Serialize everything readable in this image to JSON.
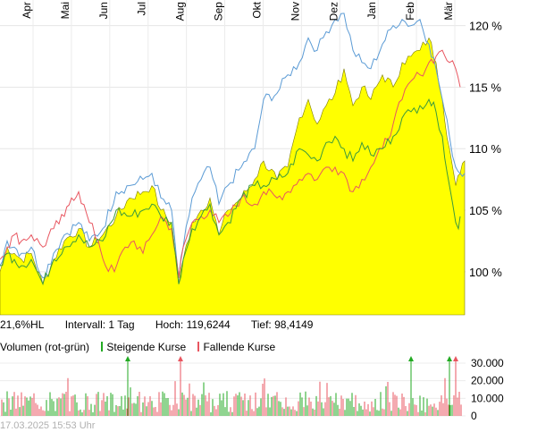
{
  "chart_data": {
    "type": "area",
    "x_ticks": [
      "Apr",
      "Mai",
      "Jun",
      "Jul",
      "Aug",
      "Sep",
      "Okt",
      "Nov",
      "Dez",
      "Jan",
      "Feb",
      "Mär"
    ],
    "y_ticks": [
      "100 %",
      "105 %",
      "110 %",
      "115 %",
      "120 %"
    ],
    "ylim": [
      96.5,
      121.5
    ],
    "series": [
      {
        "color": "#ffff00",
        "style": "area",
        "keypoints": [
          [
            0,
            100
          ],
          [
            8,
            102
          ],
          [
            16,
            101.5
          ],
          [
            24,
            101
          ],
          [
            35,
            101.5
          ],
          [
            48,
            99
          ],
          [
            60,
            101
          ],
          [
            72,
            102.5
          ],
          [
            88,
            103.5
          ],
          [
            100,
            102
          ],
          [
            115,
            103
          ],
          [
            130,
            104.5
          ],
          [
            145,
            106
          ],
          [
            160,
            106.5
          ],
          [
            170,
            107
          ],
          [
            180,
            105
          ],
          [
            192,
            104
          ],
          [
            200,
            99
          ],
          [
            205,
            101
          ],
          [
            215,
            104
          ],
          [
            225,
            105
          ],
          [
            235,
            106
          ],
          [
            245,
            103
          ],
          [
            255,
            105
          ],
          [
            270,
            106
          ],
          [
            285,
            107.5
          ],
          [
            295,
            109
          ],
          [
            310,
            107.5
          ],
          [
            322,
            108.5
          ],
          [
            335,
            112.5
          ],
          [
            345,
            114
          ],
          [
            355,
            112
          ],
          [
            365,
            113.5
          ],
          [
            375,
            114.5
          ],
          [
            385,
            116.5
          ],
          [
            395,
            113.5
          ],
          [
            405,
            115
          ],
          [
            415,
            114
          ],
          [
            428,
            116
          ],
          [
            440,
            115
          ],
          [
            450,
            117
          ],
          [
            460,
            117.5
          ],
          [
            470,
            118
          ],
          [
            480,
            119
          ],
          [
            488,
            117
          ],
          [
            495,
            114
          ],
          [
            503,
            110
          ],
          [
            510,
            107
          ],
          [
            515,
            108
          ],
          [
            520,
            109
          ]
        ]
      },
      {
        "color": "#5b9bd5",
        "style": "line",
        "keypoints": [
          [
            0,
            100.5
          ],
          [
            8,
            102.5
          ],
          [
            16,
            102
          ],
          [
            24,
            101.5
          ],
          [
            35,
            102
          ],
          [
            48,
            99.5
          ],
          [
            60,
            101.5
          ],
          [
            72,
            103
          ],
          [
            88,
            104
          ],
          [
            100,
            102.5
          ],
          [
            115,
            103.5
          ],
          [
            130,
            106.5
          ],
          [
            145,
            107
          ],
          [
            160,
            107.5
          ],
          [
            170,
            108
          ],
          [
            180,
            106
          ],
          [
            192,
            105
          ],
          [
            200,
            99.5
          ],
          [
            205,
            102
          ],
          [
            215,
            106
          ],
          [
            225,
            107.5
          ],
          [
            235,
            108.5
          ],
          [
            245,
            105.5
          ],
          [
            255,
            107
          ],
          [
            270,
            108.5
          ],
          [
            285,
            110
          ],
          [
            295,
            114
          ],
          [
            310,
            114.5
          ],
          [
            322,
            116
          ],
          [
            335,
            117
          ],
          [
            345,
            119
          ],
          [
            355,
            118
          ],
          [
            365,
            119.5
          ],
          [
            375,
            120.5
          ],
          [
            385,
            121
          ],
          [
            395,
            118
          ],
          [
            405,
            117
          ],
          [
            415,
            116.5
          ],
          [
            428,
            118.5
          ],
          [
            440,
            120
          ],
          [
            450,
            120.5
          ],
          [
            460,
            120
          ],
          [
            470,
            120.5
          ],
          [
            480,
            118.5
          ],
          [
            488,
            116.5
          ],
          [
            495,
            114
          ],
          [
            503,
            111
          ],
          [
            510,
            108.5
          ],
          [
            515,
            108
          ],
          [
            520,
            108
          ]
        ]
      },
      {
        "color": "#e85660",
        "style": "line",
        "keypoints": [
          [
            0,
            101
          ],
          [
            8,
            102
          ],
          [
            16,
            103
          ],
          [
            24,
            102.5
          ],
          [
            35,
            103
          ],
          [
            48,
            102
          ],
          [
            60,
            103.5
          ],
          [
            72,
            104.5
          ],
          [
            80,
            106
          ],
          [
            88,
            106.5
          ],
          [
            100,
            104
          ],
          [
            110,
            102.5
          ],
          [
            118,
            100.5
          ],
          [
            128,
            100
          ],
          [
            140,
            102
          ],
          [
            150,
            102.5
          ],
          [
            160,
            101.5
          ],
          [
            170,
            103
          ],
          [
            180,
            104.5
          ],
          [
            192,
            103.5
          ],
          [
            200,
            99.5
          ],
          [
            205,
            102
          ],
          [
            215,
            104
          ],
          [
            225,
            104.5
          ],
          [
            235,
            105
          ],
          [
            245,
            104
          ],
          [
            255,
            104.5
          ],
          [
            270,
            106
          ],
          [
            285,
            105.5
          ],
          [
            295,
            106.5
          ],
          [
            310,
            106
          ],
          [
            322,
            106.5
          ],
          [
            335,
            107.5
          ],
          [
            345,
            108
          ],
          [
            355,
            107.5
          ],
          [
            365,
            108.5
          ],
          [
            375,
            108.5
          ],
          [
            385,
            108
          ],
          [
            395,
            106.5
          ],
          [
            405,
            107.5
          ],
          [
            415,
            108.5
          ],
          [
            428,
            110
          ],
          [
            440,
            112
          ],
          [
            450,
            114
          ],
          [
            460,
            115.5
          ],
          [
            470,
            116
          ],
          [
            480,
            117
          ],
          [
            488,
            117.5
          ],
          [
            495,
            118
          ],
          [
            503,
            117
          ],
          [
            510,
            116.5
          ],
          [
            515,
            115
          ]
        ]
      },
      {
        "color": "#3c9a3c",
        "style": "line",
        "keypoints": [
          [
            0,
            100.5
          ],
          [
            8,
            101.5
          ],
          [
            16,
            101
          ],
          [
            24,
            100.5
          ],
          [
            35,
            101
          ],
          [
            48,
            99
          ],
          [
            60,
            101
          ],
          [
            72,
            102
          ],
          [
            88,
            103
          ],
          [
            100,
            102
          ],
          [
            115,
            102.5
          ],
          [
            130,
            105
          ],
          [
            145,
            104.5
          ],
          [
            160,
            105
          ],
          [
            170,
            105.5
          ],
          [
            180,
            104.5
          ],
          [
            192,
            104
          ],
          [
            200,
            99
          ],
          [
            205,
            101
          ],
          [
            215,
            103.5
          ],
          [
            225,
            104.5
          ],
          [
            235,
            105.5
          ],
          [
            245,
            103
          ],
          [
            255,
            104
          ],
          [
            270,
            106
          ],
          [
            285,
            107
          ],
          [
            295,
            107
          ],
          [
            310,
            107.5
          ],
          [
            322,
            108
          ],
          [
            335,
            110
          ],
          [
            345,
            109.5
          ],
          [
            355,
            109
          ],
          [
            365,
            110.5
          ],
          [
            375,
            111
          ],
          [
            385,
            110
          ],
          [
            395,
            109
          ],
          [
            405,
            110.5
          ],
          [
            415,
            109.5
          ],
          [
            428,
            110
          ],
          [
            440,
            111
          ],
          [
            450,
            112.5
          ],
          [
            460,
            113
          ],
          [
            470,
            113.5
          ],
          [
            480,
            114
          ],
          [
            488,
            113
          ],
          [
            495,
            111
          ],
          [
            503,
            107
          ],
          [
            510,
            104
          ],
          [
            513,
            103.5
          ],
          [
            515,
            104.5
          ]
        ]
      }
    ],
    "stats": {
      "hl": "21,6%HL",
      "interval": "Intervall: 1 Tag",
      "high": "Hoch: 119,6244",
      "low": "Tief: 98,4149"
    },
    "volume": {
      "title": "Volumen (rot-grün)",
      "legend_up": "Steigende Kurse",
      "legend_down": "Fallende Kurse",
      "up_color": "#22aa22",
      "down_color": "#e85660",
      "y_ticks": [
        "30.000",
        "20.000",
        "10.000",
        "0"
      ],
      "ylim": [
        0,
        31000
      ]
    },
    "timestamp": "17.03.2025 15:53 Uhr"
  }
}
